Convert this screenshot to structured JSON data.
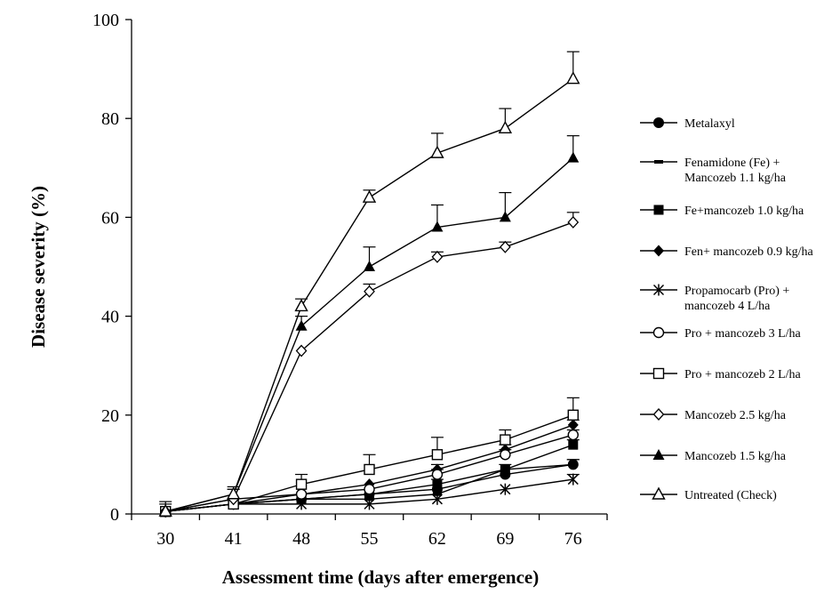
{
  "chart_data": {
    "type": "line",
    "xlabel": "Assessment time (days after emergence)",
    "ylabel": "Disease severity (%)",
    "x": [
      30,
      41,
      48,
      55,
      62,
      69,
      76
    ],
    "x_ticks": [
      "30",
      "41",
      "48",
      "55",
      "62",
      "69",
      "76"
    ],
    "y_ticks": [
      "0",
      "20",
      "40",
      "60",
      "80",
      "100"
    ],
    "ylim": [
      0,
      100
    ],
    "grid": false,
    "legend_position": "right",
    "series": [
      {
        "name": "Metalaxyl",
        "marker": "filled-circle",
        "values": [
          0.5,
          2,
          3,
          4,
          5,
          8,
          10
        ],
        "errors": [
          0.5,
          0.5,
          0.5,
          0.5,
          0.5,
          0.5,
          1
        ]
      },
      {
        "name": "Fenamidone (Fe) + Mancozeb 1.1 kg/ha",
        "marker": "dash",
        "values": [
          0.5,
          2,
          3,
          3,
          4,
          9,
          10
        ],
        "errors": [
          0.5,
          0.5,
          0.5,
          0.5,
          0.5,
          0.5,
          1
        ]
      },
      {
        "name": "Fe+mancozeb 1.0 kg/ha",
        "marker": "filled-square",
        "values": [
          0.5,
          2,
          3,
          4,
          6,
          9,
          14
        ],
        "errors": [
          0.5,
          0.5,
          0.5,
          0.5,
          1,
          1,
          1
        ]
      },
      {
        "name": "Fen+ mancozeb 0.9 kg/ha",
        "marker": "filled-diamond",
        "values": [
          0.5,
          3,
          4,
          6,
          9,
          13,
          18
        ],
        "errors": [
          0.5,
          0.5,
          0.5,
          0.5,
          1,
          1,
          1
        ]
      },
      {
        "name": "Propamocarb (Pro) + mancozeb 4 L/ha",
        "marker": "star",
        "values": [
          0.5,
          2,
          2,
          2,
          3,
          5,
          7
        ],
        "errors": [
          0.5,
          0.5,
          0.5,
          0.5,
          0.5,
          0.5,
          1
        ]
      },
      {
        "name": "Pro + mancozeb 3 L/ha",
        "marker": "open-circle",
        "values": [
          0.5,
          2,
          4,
          5,
          8,
          12,
          16
        ],
        "errors": [
          0.5,
          0.5,
          0.5,
          0.5,
          1,
          1,
          1
        ]
      },
      {
        "name": "Pro + mancozeb 2 L/ha",
        "marker": "open-square",
        "values": [
          0.5,
          2,
          6,
          9,
          12,
          15,
          20
        ],
        "errors": [
          2,
          3,
          2,
          3,
          3.5,
          2,
          3.5
        ]
      },
      {
        "name": "Mancozeb 2.5 kg/ha",
        "marker": "open-diamond",
        "values": [
          0.5,
          3,
          33,
          45,
          52,
          54,
          59
        ],
        "errors": [
          0.5,
          0.5,
          0.5,
          1.5,
          1,
          1,
          2
        ]
      },
      {
        "name": "Mancozeb 1.5 kg/ha",
        "marker": "filled-triangle",
        "values": [
          0.5,
          4,
          38,
          50,
          58,
          60,
          72
        ],
        "errors": [
          0.5,
          1,
          2,
          4,
          4.5,
          5,
          4.5
        ]
      },
      {
        "name": "Untreated (Check)",
        "marker": "open-triangle",
        "values": [
          0.5,
          4,
          42,
          64,
          73,
          78,
          88
        ],
        "errors": [
          1.5,
          1.5,
          1.5,
          1.5,
          4,
          4,
          5.5
        ]
      }
    ]
  }
}
